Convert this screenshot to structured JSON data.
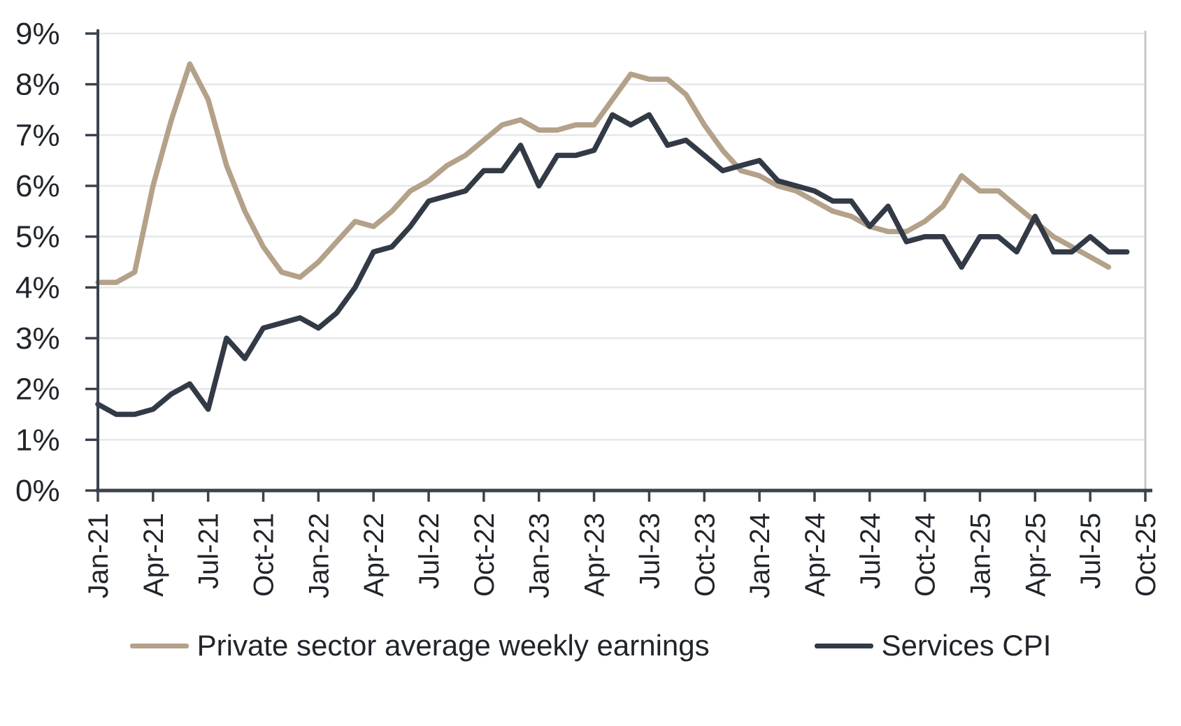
{
  "chart_data": {
    "type": "line",
    "title": "",
    "xlabel": "",
    "ylabel": "",
    "ylim": [
      0,
      9
    ],
    "grid": "horizontal",
    "y_tick_labels": [
      "0%",
      "1%",
      "2%",
      "3%",
      "4%",
      "5%",
      "6%",
      "7%",
      "8%",
      "9%"
    ],
    "x_tick_labels": [
      "Jan-21",
      "Apr-21",
      "Jul-21",
      "Oct-21",
      "Jan-22",
      "Apr-22",
      "Jul-22",
      "Oct-22",
      "Jan-23",
      "Apr-23",
      "Jul-23",
      "Oct-23",
      "Jan-24",
      "Apr-24",
      "Jul-24",
      "Oct-24",
      "Jan-25",
      "Apr-25",
      "Jul-25",
      "Oct-25"
    ],
    "x_months_per_tick": 3,
    "x_total_months": 57,
    "series": [
      {
        "name": "Private sector average weekly earnings",
        "color": "#b3a189",
        "start_month": "Jan-21",
        "end_month": "Aug-25",
        "values": [
          4.1,
          4.1,
          4.3,
          6.0,
          7.3,
          8.4,
          7.7,
          6.4,
          5.5,
          4.8,
          4.3,
          4.2,
          4.5,
          4.9,
          5.3,
          5.2,
          5.5,
          5.9,
          6.1,
          6.4,
          6.6,
          6.9,
          7.2,
          7.3,
          7.1,
          7.1,
          7.2,
          7.2,
          7.7,
          8.2,
          8.1,
          8.1,
          7.8,
          7.2,
          6.7,
          6.3,
          6.2,
          6.0,
          5.9,
          5.7,
          5.5,
          5.4,
          5.2,
          5.1,
          5.1,
          5.3,
          5.6,
          6.2,
          5.9,
          5.9,
          5.6,
          5.3,
          5.0,
          4.8,
          4.6,
          4.4
        ]
      },
      {
        "name": "Services CPI",
        "color": "#323a46",
        "start_month": "Jan-21",
        "end_month": "Sep-25",
        "values": [
          1.7,
          1.5,
          1.5,
          1.6,
          1.9,
          2.1,
          1.6,
          3.0,
          2.6,
          3.2,
          3.3,
          3.4,
          3.2,
          3.5,
          4.0,
          4.7,
          4.8,
          5.2,
          5.7,
          5.8,
          5.9,
          6.3,
          6.3,
          6.8,
          6.0,
          6.6,
          6.6,
          6.7,
          7.4,
          7.2,
          7.4,
          6.8,
          6.9,
          6.6,
          6.3,
          6.4,
          6.5,
          6.1,
          6.0,
          5.9,
          5.7,
          5.7,
          5.2,
          5.6,
          4.9,
          5.0,
          5.0,
          4.4,
          5.0,
          5.0,
          4.7,
          5.4,
          4.7,
          4.7,
          5.0,
          4.7,
          4.7
        ]
      }
    ],
    "colors": {
      "gridline": "#e4e8ea",
      "right_border": "#c3c8cc",
      "axis": "#39424e",
      "text": "#21252b",
      "background": "#ffffff"
    }
  },
  "legend": {
    "items": [
      {
        "label": "Private sector average weekly earnings"
      },
      {
        "label": "Services CPI"
      }
    ]
  }
}
